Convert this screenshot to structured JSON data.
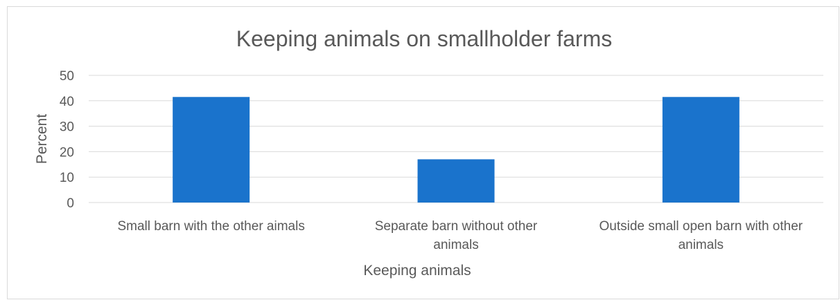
{
  "chart_data": {
    "type": "bar",
    "title": "Keeping animals on smallholder farms",
    "xlabel": "Keeping animals",
    "ylabel": "Percent",
    "categories": [
      [
        "Small barn with the other aimals"
      ],
      [
        "Separate barn without other",
        "animals"
      ],
      [
        "Outside small open barn with other",
        "animals"
      ]
    ],
    "values": [
      41.5,
      17,
      41.5
    ],
    "ylim": [
      0,
      50
    ],
    "yticks": [
      0,
      10,
      20,
      30,
      40,
      50
    ],
    "grid": true,
    "legend": "none",
    "colors": {
      "bar": "#1a73cc",
      "grid": "#d9d9d9",
      "text": "#595959"
    }
  }
}
